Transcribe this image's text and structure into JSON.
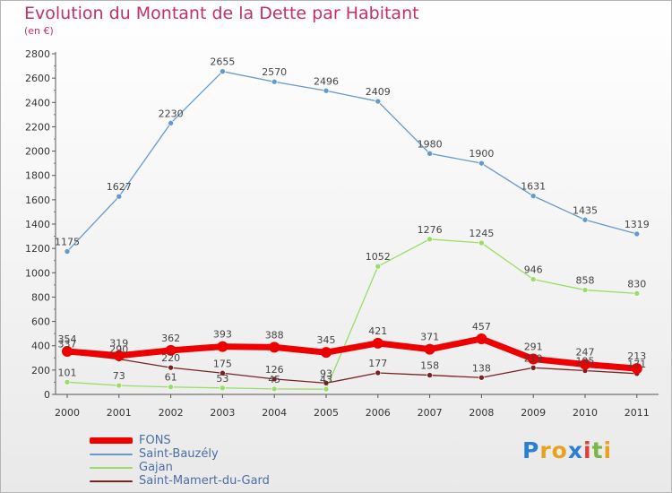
{
  "title": "Evolution du Montant de la Dette par Habitant",
  "subtitle": "(en €)",
  "logo": "Proxiti",
  "chart_data": {
    "type": "line",
    "x": [
      "2000",
      "2001",
      "2002",
      "2003",
      "2004",
      "2005",
      "2006",
      "2007",
      "2008",
      "2009",
      "2010",
      "2011"
    ],
    "ylim": [
      0,
      2800
    ],
    "yticks": [
      0,
      200,
      400,
      600,
      800,
      1000,
      1200,
      1400,
      1600,
      1800,
      2000,
      2200,
      2400,
      2600,
      2800
    ],
    "grid": false,
    "legend_position": "bottom-left",
    "series": [
      {
        "name": "FONS",
        "color": "#ee0000",
        "values": [
          354,
          319,
          362,
          393,
          388,
          345,
          421,
          371,
          457,
          291,
          247,
          213
        ]
      },
      {
        "name": "Saint-Bauzély",
        "color": "#6699cc",
        "values": [
          1175,
          1627,
          2230,
          2655,
          2570,
          2496,
          2409,
          1980,
          1900,
          1631,
          1435,
          1319
        ]
      },
      {
        "name": "Gajan",
        "color": "#99dd66",
        "values": [
          101,
          73,
          61,
          53,
          45,
          43,
          1052,
          1276,
          1245,
          946,
          858,
          830
        ]
      },
      {
        "name": "Saint-Mamert-du-Gard",
        "color": "#772222",
        "values": [
          337,
          290,
          220,
          175,
          126,
          93,
          177,
          158,
          138,
          219,
          195,
          171
        ]
      }
    ]
  }
}
